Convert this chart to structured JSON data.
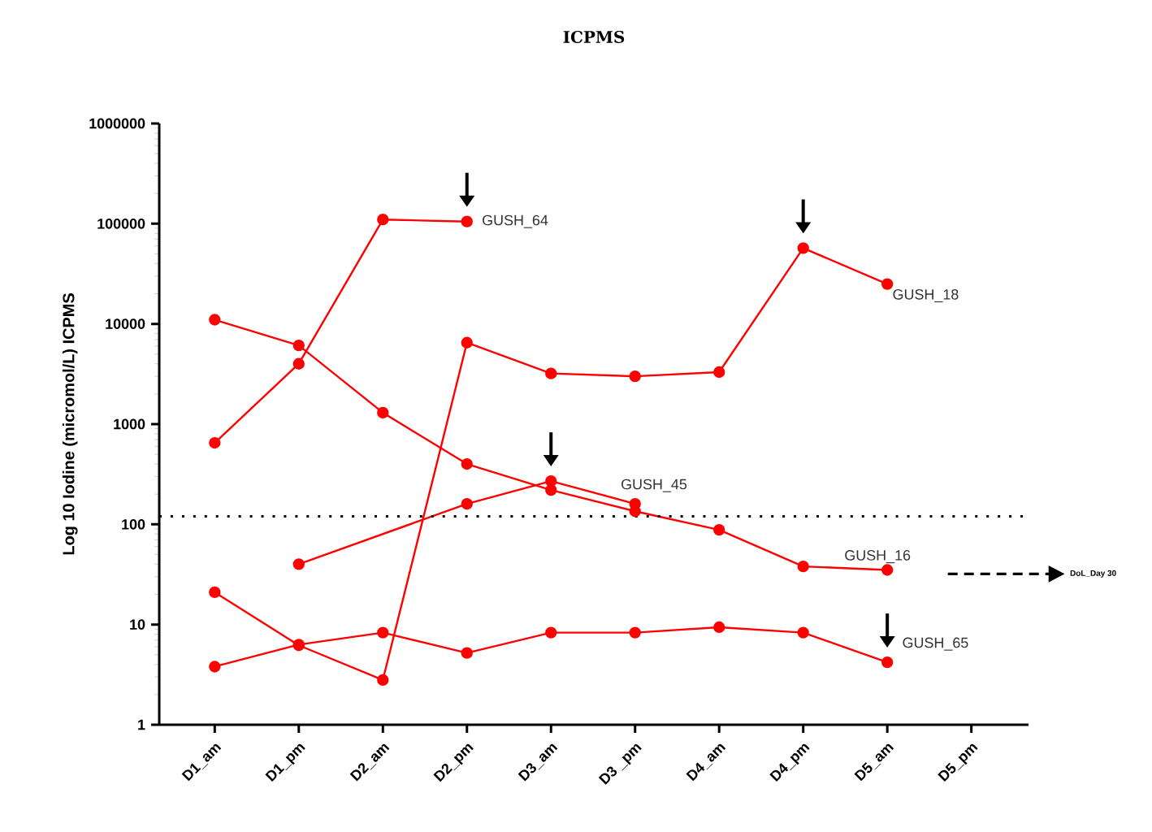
{
  "chart_data": {
    "type": "line",
    "title": "ICPMS",
    "ylabel": "Log 10 Iodine (micromol/L)  ICPMS",
    "categories": [
      "D1_am",
      "D1_pm",
      "D2_am",
      "D2_pm",
      "D3_am",
      "D3 _pm",
      "D4_am",
      "D4_pm",
      "D5_am",
      "D5_pm"
    ],
    "series": [
      {
        "name": "GUSH_64",
        "color": "#ff0000",
        "values": [
          650,
          4000,
          110000,
          105000,
          null,
          null,
          null,
          null,
          null,
          null
        ]
      },
      {
        "name": "GUSH_18",
        "color": "#ff0000",
        "values": [
          21,
          6.2,
          2.8,
          6500,
          3200,
          3000,
          3300,
          57000,
          25000,
          null
        ]
      },
      {
        "name": "GUSH_16",
        "color": "#ff0000",
        "values": [
          11000,
          6100,
          1300,
          400,
          220,
          135,
          88,
          38,
          35,
          null
        ]
      },
      {
        "name": "GUSH_45",
        "color": "#ff0000",
        "values": [
          null,
          40,
          null,
          160,
          270,
          160,
          null,
          null,
          null,
          null
        ]
      },
      {
        "name": "GUSH_65",
        "color": "#ff0000",
        "values": [
          3.8,
          6.3,
          8.3,
          5.2,
          8.3,
          8.3,
          9.4,
          8.3,
          4.2,
          null
        ]
      }
    ],
    "ylim": [
      1,
      1000000
    ],
    "yticks": [
      1,
      10,
      100,
      1000,
      10000,
      100000,
      1000000
    ],
    "log": "y",
    "grid": false,
    "marker": "circle",
    "line_style": "solid",
    "annotations": [
      "DoL_Day 30"
    ],
    "ref_lines": [
      {
        "axis": "y",
        "value": 120,
        "line_style": "dotted",
        "color": "#000000"
      }
    ]
  }
}
